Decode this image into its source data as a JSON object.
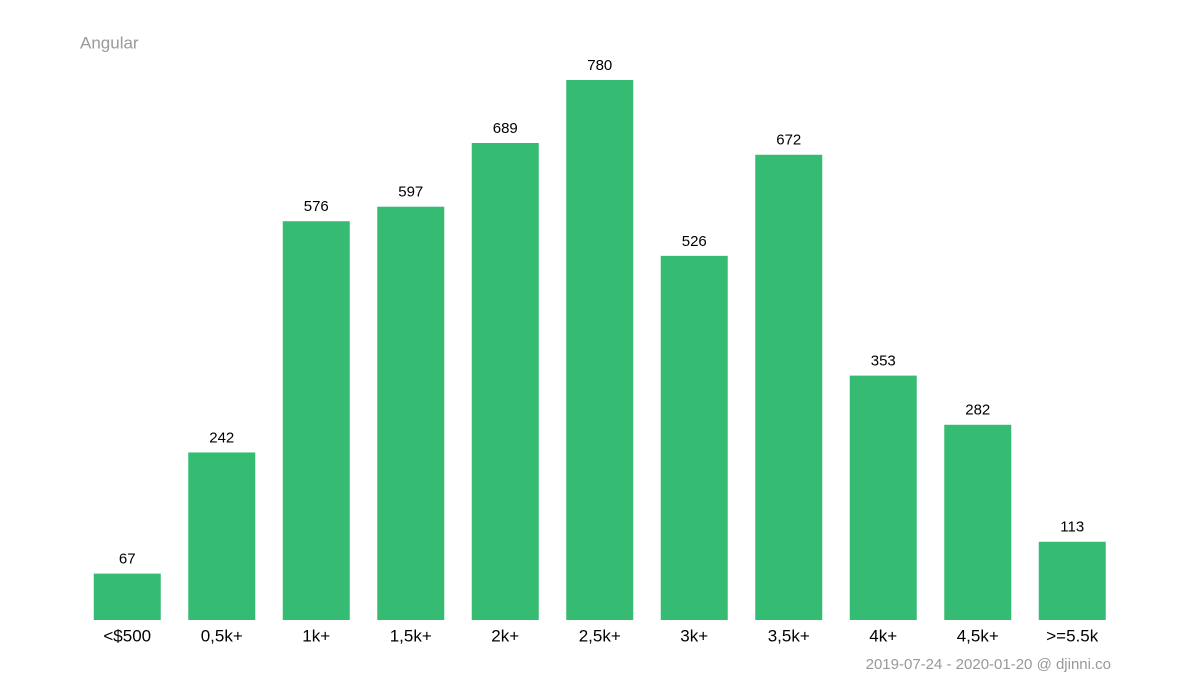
{
  "chart_data": {
    "type": "bar",
    "title": "Angular",
    "categories": [
      "<$500",
      "0,5k+",
      "1k+",
      "1,5k+",
      "2k+",
      "2,5k+",
      "3k+",
      "3,5k+",
      "4k+",
      "4,5k+",
      ">=5.5k"
    ],
    "values": [
      67,
      242,
      576,
      597,
      689,
      780,
      526,
      672,
      353,
      282,
      113
    ],
    "color": "#36bb72",
    "footer": "2019-07-24 - 2020-01-20 @ djinni.co"
  }
}
